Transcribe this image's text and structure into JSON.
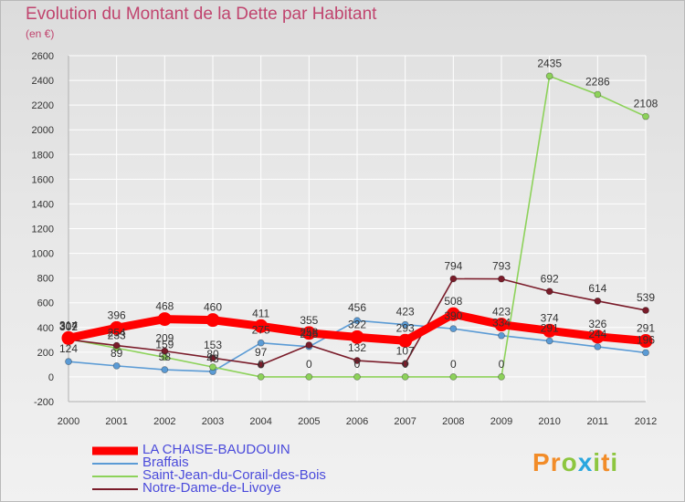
{
  "title": "Evolution du Montant de la Dette par Habitant",
  "subtitle": "(en €)",
  "logo": {
    "letters": [
      "P",
      "r",
      "o",
      "x",
      "i",
      "t",
      "i"
    ],
    "colors": [
      "#f28c28",
      "#f28c28",
      "#8dc63f",
      "#2aa7df",
      "#8dc63f",
      "#f28c28",
      "#8dc63f"
    ]
  },
  "chart_data": {
    "type": "line",
    "title": "Evolution du Montant de la Dette par Habitant",
    "ylabel": "(en €)",
    "xlabel": "",
    "x": [
      "2000",
      "2001",
      "2002",
      "2003",
      "2004",
      "2005",
      "2006",
      "2007",
      "2008",
      "2009",
      "2010",
      "2011",
      "2012"
    ],
    "ylim": [
      -200,
      2600
    ],
    "yticks": [
      -200,
      0,
      200,
      400,
      600,
      800,
      1000,
      1200,
      1400,
      1600,
      1800,
      2000,
      2200,
      2400,
      2600
    ],
    "grid": true,
    "legend_position": "bottom-left",
    "series": [
      {
        "name": "LA CHAISE-BAUDOUIN",
        "color": "#ff0000",
        "emphasis": true,
        "values": [
          314,
          396,
          468,
          460,
          411,
          355,
          322,
          293,
          508,
          423,
          374,
          326,
          291
        ]
      },
      {
        "name": "Braffais",
        "color": "#5b9bd5",
        "values": [
          124,
          89,
          58,
          43,
          275,
          245,
          456,
          423,
          390,
          334,
          291,
          244,
          196
        ]
      },
      {
        "name": "Saint-Jean-du-Corail-des-Bois",
        "color": "#8dd25a",
        "values": [
          307,
          233,
          159,
          80,
          0,
          0,
          0,
          0,
          0,
          0,
          2435,
          2286,
          2108
        ]
      },
      {
        "name": "Notre-Dame-de-Livoye",
        "color": "#7a1c2a",
        "values": [
          302,
          254,
          209,
          153,
          97,
          258,
          132,
          107,
          794,
          793,
          692,
          614,
          539
        ]
      }
    ]
  }
}
